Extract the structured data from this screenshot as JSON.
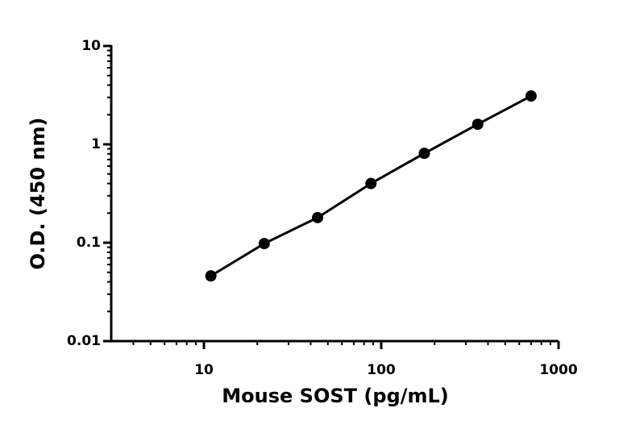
{
  "chart_data": {
    "type": "scatter",
    "x_label": "Mouse SOST (pg/mL)",
    "y_label": "O.D. (450 nm)",
    "x_scale": "log",
    "y_scale": "log",
    "xlim": [
      3,
      1000
    ],
    "xticks": [
      10,
      100,
      1000
    ],
    "ylim": [
      0.01,
      10
    ],
    "yticks": [
      0.01,
      0.1,
      1,
      10
    ],
    "color": "#000000",
    "fit_line": true,
    "x": [
      10.94,
      21.88,
      43.75,
      87.5,
      175,
      350,
      700
    ],
    "values": [
      0.046,
      0.098,
      0.18,
      0.4,
      0.81,
      1.6,
      3.1
    ]
  }
}
